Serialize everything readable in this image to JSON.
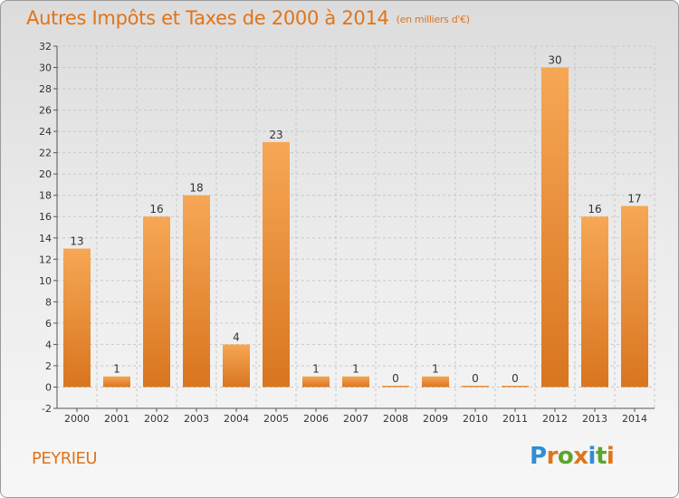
{
  "header": {
    "title": "Autres Impôts et Taxes de 2000 à 2014",
    "unit": "(en milliers d'€)"
  },
  "footer": {
    "commune": "PEYRIEU",
    "logo_text": "Proxiti"
  },
  "colors": {
    "accent": "#e1741a",
    "bar_light": "#f6a755",
    "bar_dark": "#d9751f"
  },
  "chart_data": {
    "type": "bar",
    "title": "Autres Impôts et Taxes de 2000 à 2014",
    "subtitle": "(en milliers d'€)",
    "categories": [
      "2000",
      "2001",
      "2002",
      "2003",
      "2004",
      "2005",
      "2006",
      "2007",
      "2008",
      "2009",
      "2010",
      "2011",
      "2012",
      "2013",
      "2014"
    ],
    "values": [
      13,
      1,
      16,
      18,
      4,
      23,
      1,
      1,
      0,
      1,
      0,
      0,
      30,
      16,
      17
    ],
    "ylim": [
      -2,
      32
    ],
    "yticks": [
      -2,
      0,
      2,
      4,
      6,
      8,
      10,
      12,
      14,
      16,
      18,
      20,
      22,
      24,
      26,
      28,
      30,
      32
    ],
    "grid": true,
    "legend": "none"
  }
}
